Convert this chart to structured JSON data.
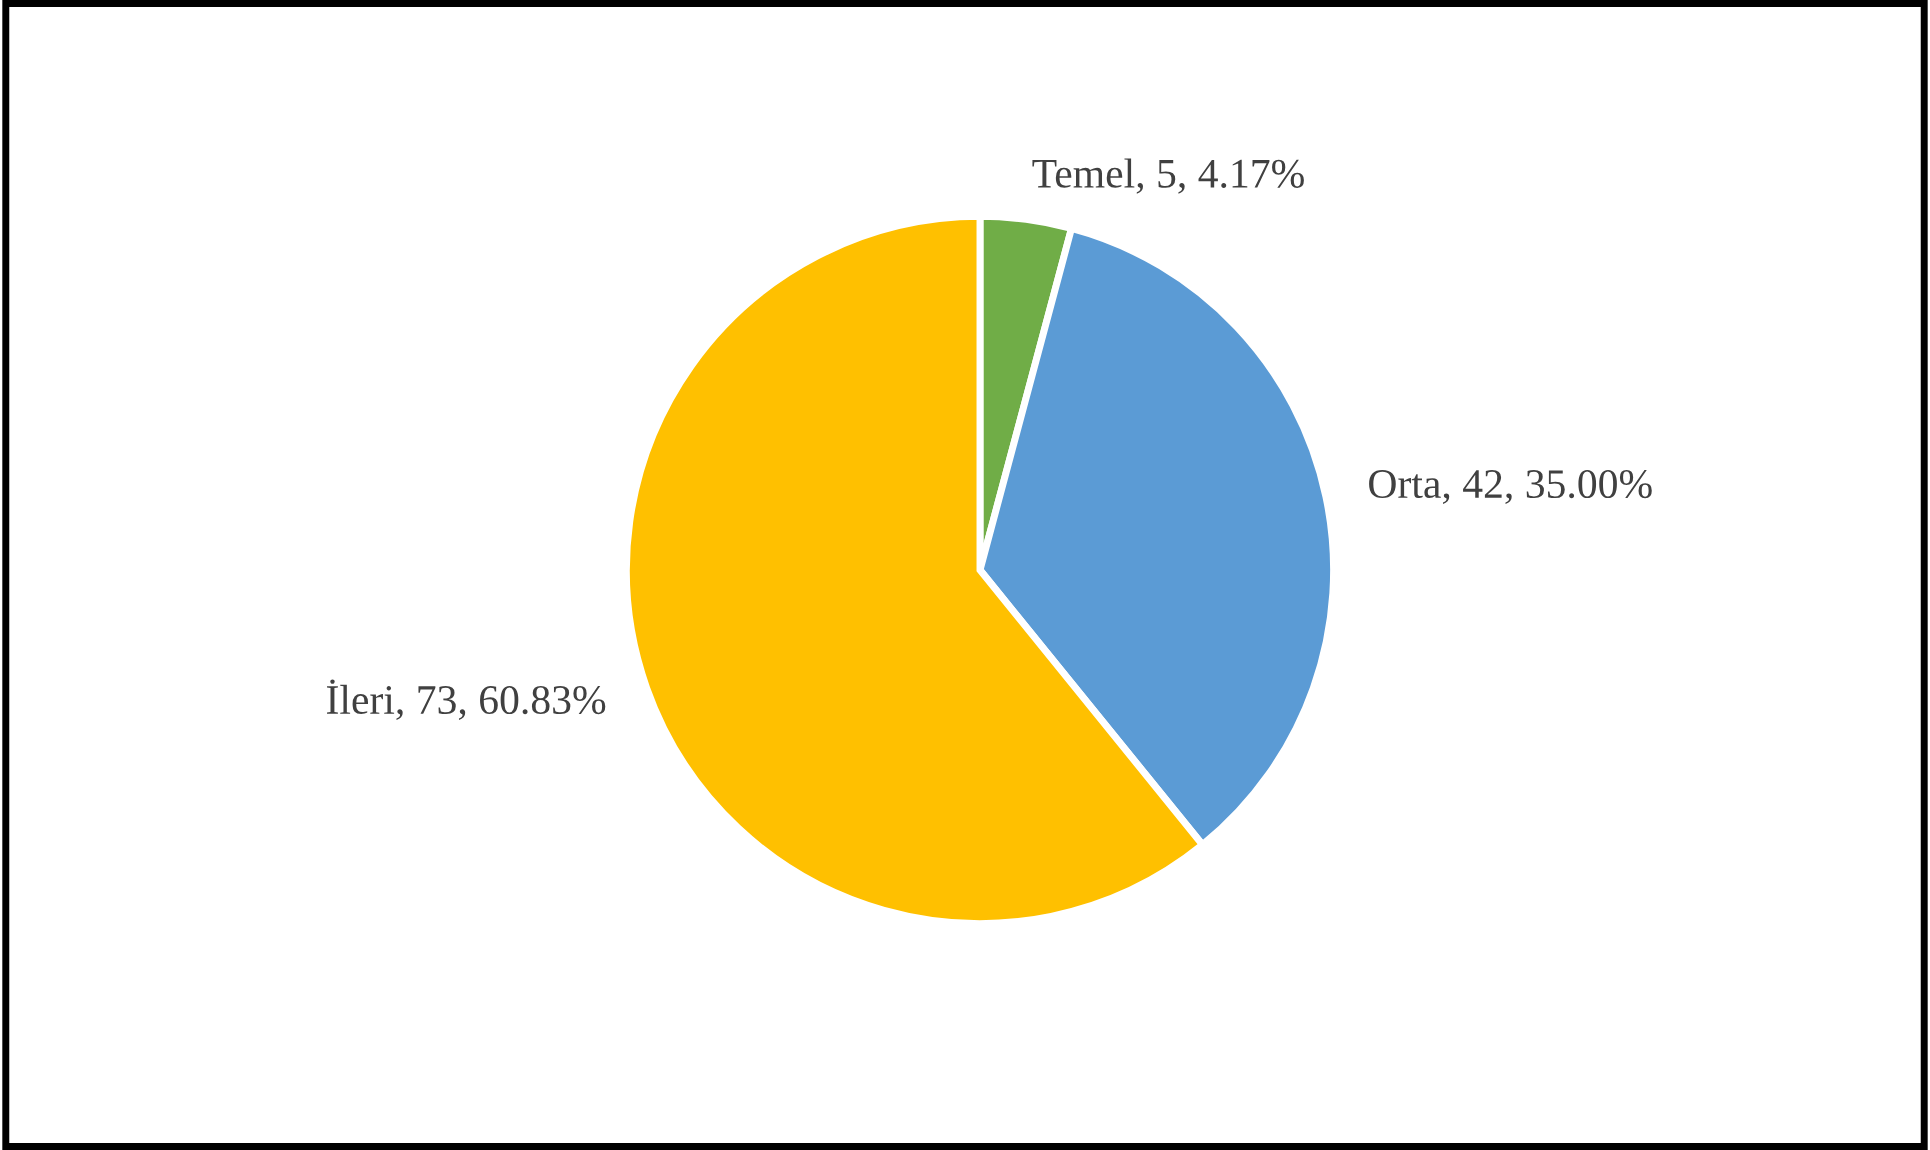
{
  "chart_data": {
    "type": "pie",
    "categories": [
      "Temel",
      "Orta",
      "İleri"
    ],
    "values": [
      5,
      42,
      73
    ],
    "colors": [
      "#70ad47",
      "#5b9bd5",
      "#ffc000"
    ],
    "value_labels": [
      "5, 4.17%",
      "42, 35.00%",
      "73, 60.83%"
    ],
    "legend": false
  }
}
